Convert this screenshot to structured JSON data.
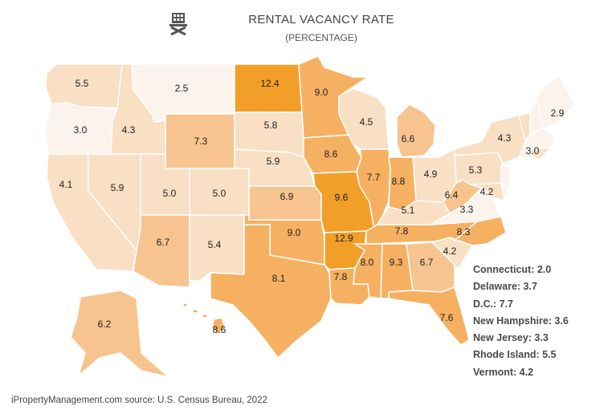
{
  "header": {
    "title": "RENTAL VACANCY RATE",
    "subtitle": "(PERCENTAGE)",
    "logo_icon": "building-logo-icon"
  },
  "colors": {
    "lightest": "#fbf3ec",
    "light": "#f9dfc4",
    "mid": "#f7c490",
    "strong": "#f5b061",
    "strongest": "#f29f29",
    "border": "#ffffff"
  },
  "states": [
    {
      "name": "Washington",
      "value": "5.5"
    },
    {
      "name": "Oregon",
      "value": "3.0"
    },
    {
      "name": "California",
      "value": "4.1"
    },
    {
      "name": "Idaho",
      "value": "4.3"
    },
    {
      "name": "Nevada",
      "value": "5.9"
    },
    {
      "name": "Montana",
      "value": "2.5"
    },
    {
      "name": "Wyoming",
      "value": "7.3"
    },
    {
      "name": "Utah",
      "value": "5.0"
    },
    {
      "name": "Arizona",
      "value": "6.7"
    },
    {
      "name": "Colorado",
      "value": "5.0"
    },
    {
      "name": "New Mexico",
      "value": "5.4"
    },
    {
      "name": "North Dakota",
      "value": "12.4"
    },
    {
      "name": "South Dakota",
      "value": "5.8"
    },
    {
      "name": "Nebraska",
      "value": "5.9"
    },
    {
      "name": "Kansas",
      "value": "6.9"
    },
    {
      "name": "Oklahoma",
      "value": "9.0"
    },
    {
      "name": "Texas",
      "value": "8.1"
    },
    {
      "name": "Minnesota",
      "value": "9.0"
    },
    {
      "name": "Iowa",
      "value": "8.6"
    },
    {
      "name": "Missouri",
      "value": "9.6"
    },
    {
      "name": "Arkansas",
      "value": "12.9"
    },
    {
      "name": "Louisiana",
      "value": "7.8"
    },
    {
      "name": "Wisconsin",
      "value": "4.5"
    },
    {
      "name": "Illinois",
      "value": "7.7"
    },
    {
      "name": "Michigan",
      "value": "6.6"
    },
    {
      "name": "Indiana",
      "value": "8.8"
    },
    {
      "name": "Ohio",
      "value": "4.9"
    },
    {
      "name": "Kentucky",
      "value": "5.1"
    },
    {
      "name": "Tennessee",
      "value": "7.8"
    },
    {
      "name": "Mississippi",
      "value": "8.0"
    },
    {
      "name": "Alabama",
      "value": "9.3"
    },
    {
      "name": "Georgia",
      "value": "6.7"
    },
    {
      "name": "Florida",
      "value": "7.6"
    },
    {
      "name": "South Carolina",
      "value": "4.2"
    },
    {
      "name": "North Carolina",
      "value": "8.3"
    },
    {
      "name": "Virginia",
      "value": "3.3"
    },
    {
      "name": "West Virginia",
      "value": "6.4"
    },
    {
      "name": "Maryland",
      "value": "4.2"
    },
    {
      "name": "Pennsylvania",
      "value": "5.3"
    },
    {
      "name": "New York",
      "value": "4.3"
    },
    {
      "name": "Massachusetts",
      "value": "3.0"
    },
    {
      "name": "Maine",
      "value": "2.9"
    },
    {
      "name": "Alaska",
      "value": "6.2"
    },
    {
      "name": "Hawaii",
      "value": "8.6"
    }
  ],
  "small_states": [
    {
      "label": "Connecticut: 2.0"
    },
    {
      "label": "Delaware: 3.7"
    },
    {
      "label": "D.C.: 7.7"
    },
    {
      "label": "New Hampshire: 3.6"
    },
    {
      "label": "New Jersey: 3.3"
    },
    {
      "label": "Rhode Island: 5.5"
    },
    {
      "label": "Vermont: 4.2"
    }
  ],
  "source": "iPropertyManagement.com source: U.S. Census Bureau, 2022"
}
